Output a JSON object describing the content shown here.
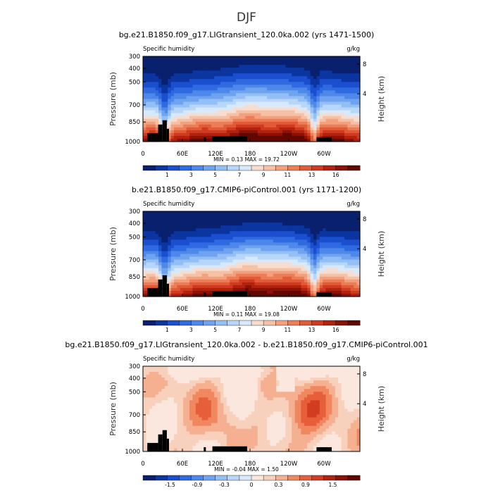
{
  "figure_title": "DJF",
  "colors": {
    "abs": [
      "#08206d",
      "#0b35a0",
      "#1a4fcf",
      "#2f6ae0",
      "#4d88ea",
      "#6fa3ef",
      "#93bff5",
      "#b7d6fa",
      "#d9e9fc",
      "#f8ddcf",
      "#f7c1a6",
      "#f4a07d",
      "#ee7d57",
      "#e35a37",
      "#cf3a21",
      "#b1220f",
      "#8a1305",
      "#5e0800"
    ],
    "diff": [
      "#08206d",
      "#0b35a0",
      "#1a4fcf",
      "#2f6ae0",
      "#4d88ea",
      "#6fa3ef",
      "#93bff5",
      "#b7d6fa",
      "#d9e9fc",
      "#fbe7dd",
      "#f8d1bc",
      "#f5b091",
      "#f0875f",
      "#e65f3a",
      "#d13c22",
      "#b1220f",
      "#8a1305",
      "#5e0800"
    ],
    "terrain": "#000000"
  },
  "chart_data": [
    {
      "type": "heatmap",
      "title": "bg.e21.B1850.f09_g17.LIGtransient_120.0ka.002 (yrs 1471-1500)",
      "left_label": "Specific humidity",
      "right_label": "g/kg",
      "ylabel": "Pressure (mb)",
      "y2label": "Height (km)",
      "yticks": [
        "300",
        "400",
        "500",
        "700",
        "850",
        "1000"
      ],
      "y2ticks": [
        "8",
        "4"
      ],
      "xticks": [
        "0",
        "60E",
        "120E",
        "180",
        "120W",
        "60W"
      ],
      "stats": {
        "min_label": "MIN =",
        "min": "0.13",
        "max_label": "MAX =",
        "max": "19.72"
      },
      "colorbar_labels": [
        "1",
        "3",
        "5",
        "7",
        "9",
        "11",
        "13",
        "16"
      ],
      "min": 0.13,
      "max": 19.72
    },
    {
      "type": "heatmap",
      "title": "b.e21.B1850.f09_g17.CMIP6-piControl.001 (yrs 1171-1200)",
      "left_label": "Specific humidity",
      "right_label": "g/kg",
      "ylabel": "Pressure (mb)",
      "y2label": "Height (km)",
      "yticks": [
        "300",
        "400",
        "500",
        "700",
        "850",
        "1000"
      ],
      "y2ticks": [
        "8",
        "4"
      ],
      "xticks": [
        "0",
        "60E",
        "120E",
        "180",
        "120W",
        "60W"
      ],
      "stats": {
        "min_label": "MIN =",
        "min": "0.11",
        "max_label": "MAX =",
        "max": "19.08"
      },
      "colorbar_labels": [
        "1",
        "3",
        "5",
        "7",
        "9",
        "11",
        "13",
        "16"
      ],
      "min": 0.11,
      "max": 19.08
    },
    {
      "type": "heatmap",
      "title": "bg.e21.B1850.f09_g17.LIGtransient_120.0ka.002 - b.e21.B1850.f09_g17.CMIP6-piControl.001",
      "left_label": "Specific humidity",
      "right_label": "g/kg",
      "ylabel": "Pressure (mb)",
      "y2label": "Height (km)",
      "yticks": [
        "300",
        "400",
        "500",
        "700",
        "850",
        "1000"
      ],
      "y2ticks": [
        "8",
        "4"
      ],
      "xticks": [
        "0",
        "60E",
        "120E",
        "180",
        "120W",
        "60W"
      ],
      "stats": {
        "min_label": "MIN =",
        "min": "-0.04",
        "max_label": "MAX =",
        "max": "1.50"
      },
      "colorbar_labels": [
        "-1.5",
        "-0.9",
        "-0.3",
        "0",
        "0.3",
        "0.9",
        "1.5"
      ],
      "min": -0.04,
      "max": 1.5
    }
  ]
}
